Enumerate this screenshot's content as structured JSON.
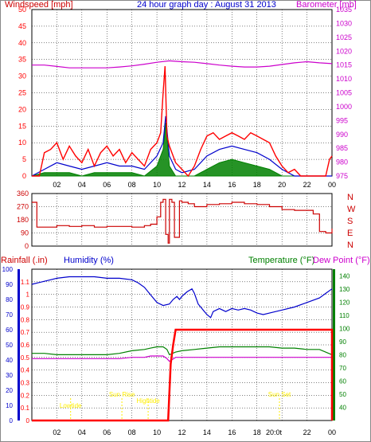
{
  "colors": {
    "wind_speed": "#ff0000",
    "wind_gust": "#ff0000",
    "wind_avg": "#0000cc",
    "wind_low": "#008000",
    "barometer": "#cc00cc",
    "direction": "#cc0000",
    "rainfall": "#ff0000",
    "humidity": "#0000cc",
    "temperature": "#008000",
    "dew_point": "#cc00cc",
    "title": "#0000cc",
    "axis_left": "#cc0000",
    "sun_labels": "#ffee00",
    "grid": "#000000"
  },
  "panels": {
    "wind": {
      "title": "24 hour graph day : August 31 2013",
      "left_label": "Windspeed [mph]",
      "right_label": "Barometer [mb]"
    },
    "direction": {
      "compass": [
        "N",
        "W",
        "S",
        "E",
        "N"
      ]
    },
    "rain": {
      "rainfall_label": "Rainfall (.in)",
      "humidity_label": "Humidity (%)",
      "temperature_label": "Temperature (°F)",
      "dewpoint_label": "Dew Point (°F)",
      "events": [
        {
          "label": "Lowtide",
          "hour": 3.1
        },
        {
          "label": "Sun Rise",
          "hour": 7.2
        },
        {
          "label": "Hightide",
          "hour": 9.3
        },
        {
          "label": "Sun Set",
          "hour": 19.8
        }
      ],
      "x_axis_extra_label": "20:0t"
    }
  },
  "chart_data": [
    {
      "type": "line",
      "title": "24 hour graph day : August 31 2013",
      "x_ticks": [
        "02",
        "04",
        "06",
        "08",
        "10",
        "12",
        "14",
        "16",
        "18",
        "20",
        "22",
        "00"
      ],
      "x_range_hours": [
        0,
        24
      ],
      "ylabel_left": "Windspeed [mph]",
      "ylim_left": [
        0,
        50
      ],
      "yticks_left": [
        0,
        5,
        10,
        15,
        20,
        25,
        30,
        35,
        40,
        45,
        50
      ],
      "ylabel_right": "Barometer [mb]",
      "ylim_right": [
        975,
        1035
      ],
      "yticks_right": [
        975,
        980,
        985,
        990,
        995,
        1000,
        1005,
        1010,
        1015,
        1020,
        1025,
        1030,
        1035
      ],
      "series": [
        {
          "role": "gust",
          "color": "#ff0000",
          "x": [
            0,
            0.6,
            1,
            1.5,
            2,
            2.5,
            3,
            3.5,
            4,
            4.5,
            5,
            5.5,
            6,
            6.5,
            7,
            7.5,
            8,
            8.5,
            9,
            9.5,
            10,
            10.3,
            10.5,
            10.65,
            10.8,
            11,
            11.5,
            12,
            12.5,
            13,
            13.5,
            14,
            14.5,
            15,
            15.5,
            16,
            16.5,
            17,
            17.5,
            18,
            18.5,
            19,
            19.5,
            20,
            20.5,
            21,
            21.5,
            22,
            22.5,
            23,
            23.5,
            23.8,
            24
          ],
          "values": [
            0,
            0,
            7,
            8,
            10,
            5,
            9,
            6,
            4,
            8,
            3,
            7,
            9,
            6,
            8,
            4,
            7,
            5,
            3,
            8,
            10,
            13,
            25,
            33,
            12,
            9,
            4,
            2,
            0,
            3,
            8,
            12,
            13,
            11,
            12,
            13,
            12,
            11,
            13,
            12,
            11,
            10,
            6,
            3,
            1,
            2,
            0,
            0,
            0,
            0,
            0,
            5,
            6
          ]
        },
        {
          "role": "average",
          "color": "#0000cc",
          "x": [
            0,
            1,
            2,
            3,
            4,
            5,
            6,
            7,
            8,
            9,
            10,
            10.5,
            10.7,
            11,
            11.5,
            12,
            13,
            14,
            15,
            16,
            17,
            18,
            19,
            20,
            21,
            22,
            23,
            24
          ],
          "values": [
            0,
            2,
            4,
            3,
            2,
            3,
            4,
            3,
            3,
            2,
            6,
            10,
            18,
            6,
            2,
            1,
            2,
            6,
            8,
            9,
            8,
            7,
            5,
            2,
            0,
            0,
            0,
            0
          ]
        },
        {
          "role": "low",
          "color": "#008000",
          "x": [
            0,
            1,
            2,
            3,
            4,
            5,
            6,
            7,
            8,
            9,
            10,
            10.5,
            10.7,
            11,
            11.5,
            12,
            13,
            14,
            15,
            16,
            17,
            18,
            19,
            20,
            21,
            22,
            23,
            24
          ],
          "values": [
            0,
            1,
            1,
            1,
            0,
            1,
            1,
            1,
            1,
            0,
            3,
            8,
            16,
            3,
            0,
            0,
            0,
            2,
            4,
            5,
            4,
            3,
            2,
            0,
            0,
            0,
            0,
            0
          ]
        },
        {
          "role": "barometer",
          "color": "#cc00cc",
          "axis": "right",
          "x": [
            0,
            1,
            2,
            3,
            4,
            5,
            6,
            7,
            8,
            9,
            10,
            11,
            12,
            13,
            14,
            15,
            16,
            17,
            18,
            19,
            20,
            21,
            22,
            23,
            24
          ],
          "values": [
            1015,
            1015,
            1014.5,
            1014,
            1014,
            1014,
            1014,
            1014.3,
            1014.7,
            1015.3,
            1016,
            1016.5,
            1016.2,
            1016,
            1015.5,
            1015,
            1014.6,
            1014.3,
            1014.3,
            1014.6,
            1015.2,
            1015.8,
            1016.2,
            1015.8,
            1015.5
          ]
        }
      ]
    },
    {
      "type": "line",
      "x_range_hours": [
        0,
        24
      ],
      "ylim": [
        0,
        360
      ],
      "yticks": [
        0,
        90,
        180,
        270,
        360
      ],
      "series": [
        {
          "role": "direction",
          "color": "#cc0000",
          "x": [
            0,
            0.3,
            0.4,
            1,
            2,
            3,
            4,
            5,
            6,
            7,
            8,
            9,
            9.5,
            10,
            10.3,
            10.5,
            10.7,
            10.9,
            11,
            11.2,
            11.4,
            11.6,
            11.8,
            12,
            12.5,
            13,
            14,
            15,
            16,
            17,
            18,
            19,
            20,
            21,
            22,
            22.5,
            23,
            23.5,
            24
          ],
          "values": [
            300,
            300,
            130,
            130,
            140,
            135,
            140,
            130,
            135,
            135,
            130,
            140,
            150,
            200,
            300,
            320,
            80,
            20,
            320,
            300,
            60,
            60,
            310,
            300,
            290,
            270,
            285,
            290,
            300,
            290,
            285,
            270,
            250,
            245,
            245,
            220,
            100,
            90,
            120
          ]
        }
      ]
    },
    {
      "type": "line",
      "x_range_hours": [
        0,
        24
      ],
      "ylabel_left": "Rainfall (.in)",
      "ylim_rain": [
        0,
        1.2
      ],
      "yticks_rain": [
        0,
        0.1,
        0.2,
        0.3,
        0.4,
        0.5,
        0.6,
        0.7,
        0.8,
        0.9,
        1,
        1.1
      ],
      "ylabel_humidity": "Humidity (%)",
      "ylim_humidity": [
        0,
        100
      ],
      "yticks_humidity": [
        0,
        10,
        20,
        30,
        40,
        50,
        60,
        70,
        80,
        90,
        100
      ],
      "ylabel_right": "Temperature (°F)",
      "ylim_temp": [
        30,
        145
      ],
      "yticks_temp": [
        40,
        50,
        60,
        70,
        80,
        90,
        100,
        110,
        120,
        130,
        140
      ],
      "series": [
        {
          "role": "humidity",
          "color": "#0000cc",
          "x": [
            0,
            0.5,
            1,
            1.5,
            2,
            3,
            4,
            5,
            6,
            7,
            8,
            8.5,
            9,
            9.5,
            10,
            10.5,
            11,
            11.3,
            11.6,
            11.8,
            12,
            12.4,
            12.8,
            13,
            13.3,
            13.6,
            14,
            14.3,
            14.5,
            15,
            15.5,
            16,
            16.5,
            17,
            17.5,
            18,
            18.5,
            19,
            19.5,
            20,
            21,
            22,
            23,
            23.5,
            24
          ],
          "values": [
            90,
            91,
            92,
            93,
            94,
            95,
            95,
            95,
            94,
            94,
            93,
            91,
            88,
            83,
            78,
            76,
            77,
            80,
            82,
            80,
            82,
            85,
            87,
            84,
            77,
            74,
            70,
            68,
            72,
            74,
            72,
            74,
            73,
            74,
            73,
            71,
            70,
            71,
            72,
            73,
            75,
            78,
            81,
            84,
            87
          ]
        },
        {
          "role": "temperature",
          "color": "#008000",
          "axis": "temp",
          "x": [
            0,
            1,
            2,
            3,
            4,
            5,
            6,
            7,
            8,
            9,
            9.5,
            10,
            10.5,
            10.8,
            11,
            11.5,
            12,
            13,
            14,
            15,
            16,
            17,
            18,
            19,
            20,
            21,
            22,
            23,
            24
          ],
          "values": [
            81,
            81,
            80,
            80,
            80,
            80,
            80,
            81,
            83,
            84,
            85,
            86,
            86,
            84,
            80,
            82,
            83,
            84,
            85,
            86,
            86,
            86,
            86,
            86,
            85,
            85,
            84,
            84,
            80
          ]
        },
        {
          "role": "dew_point",
          "color": "#cc00cc",
          "axis": "temp",
          "x": [
            0,
            1,
            2,
            3,
            4,
            5,
            6,
            7,
            8,
            9,
            9.5,
            10,
            10.5,
            10.8,
            11,
            11.5,
            12,
            13,
            14,
            15,
            16,
            17,
            18,
            19,
            20,
            21,
            22,
            23,
            24
          ],
          "values": [
            77,
            77,
            77,
            77,
            77,
            77,
            77,
            77,
            78,
            78,
            79,
            79,
            79,
            77,
            75,
            78,
            78,
            78,
            78,
            78,
            78,
            78,
            78,
            78,
            78,
            78,
            78,
            78,
            78
          ]
        },
        {
          "role": "rainfall",
          "color": "#ff0000",
          "axis": "rain",
          "x": [
            0,
            10.9,
            11.1,
            11.3,
            11.5,
            24,
            24
          ],
          "values": [
            0,
            0,
            0.45,
            0.6,
            0.72,
            0.72,
            0
          ]
        }
      ]
    }
  ]
}
